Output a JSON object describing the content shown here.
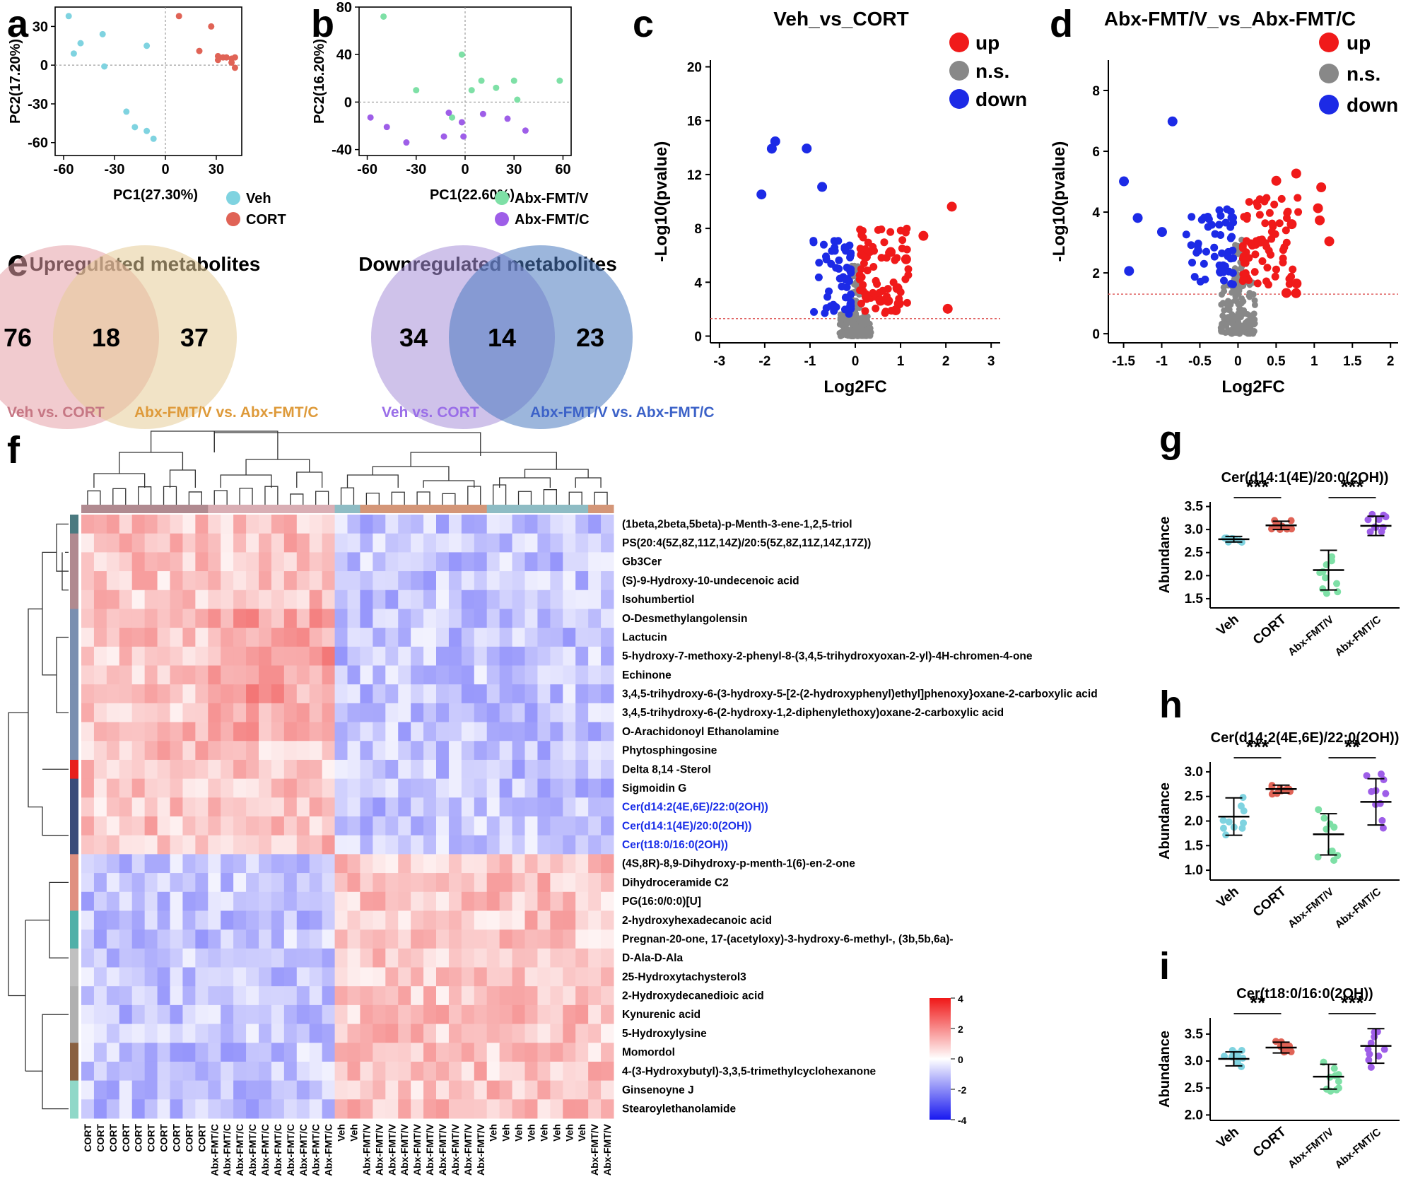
{
  "panel_labels": {
    "a": "a",
    "b": "b",
    "c": "c",
    "d": "d",
    "e": "e",
    "f": "f",
    "g": "g",
    "h": "h",
    "i": "i"
  },
  "colors": {
    "veh": "#7fd3e0",
    "cort": "#e06356",
    "abx_v": "#7ee0a6",
    "abx_c": "#9e5ee8",
    "up": "#f01a1a",
    "ns": "#888888",
    "down": "#1c2ae6"
  },
  "chart_data": [
    {
      "id": "a",
      "type": "scatter",
      "xlabel": "PC1(27.30%)",
      "ylabel": "PC2(17.20%)",
      "xlim": [
        -65,
        45
      ],
      "ylim": [
        -70,
        45
      ],
      "xticks": [
        "-60",
        "-30",
        "0",
        "30"
      ],
      "yticks": [
        "30",
        "0",
        "-30",
        "-60"
      ],
      "legend": [
        "Veh",
        "CORT"
      ],
      "series": [
        {
          "name": "Veh",
          "points": [
            [
              -57,
              38
            ],
            [
              -50,
              17
            ],
            [
              -54,
              9
            ],
            [
              -37,
              24
            ],
            [
              -36,
              -1
            ],
            [
              -11,
              15
            ],
            [
              -23,
              -36
            ],
            [
              -18,
              -48
            ],
            [
              -11,
              -51
            ],
            [
              -7,
              -57
            ]
          ]
        },
        {
          "name": "CORT",
          "points": [
            [
              8,
              38
            ],
            [
              27,
              30
            ],
            [
              20,
              11
            ],
            [
              31,
              7
            ],
            [
              34,
              6
            ],
            [
              36,
              6
            ],
            [
              39,
              5
            ],
            [
              41,
              6
            ],
            [
              39,
              2
            ],
            [
              41,
              -2
            ],
            [
              31,
              4
            ]
          ]
        }
      ]
    },
    {
      "id": "b",
      "type": "scatter",
      "xlabel": "PC1(22.60%)",
      "ylabel": "PC2(16.20%)",
      "xlim": [
        -65,
        65
      ],
      "ylim": [
        -45,
        80
      ],
      "xticks": [
        "-60",
        "-30",
        "0",
        "30",
        "60"
      ],
      "yticks": [
        "80",
        "40",
        "0",
        "-40"
      ],
      "legend": [
        "Abx-FMT/V",
        "Abx-FMT/C"
      ],
      "series": [
        {
          "name": "Abx-FMT/V",
          "points": [
            [
              -50,
              72
            ],
            [
              -30,
              10
            ],
            [
              -2,
              40
            ],
            [
              4,
              10
            ],
            [
              10,
              18
            ],
            [
              19,
              12
            ],
            [
              30,
              18
            ],
            [
              32,
              2
            ],
            [
              58,
              18
            ],
            [
              -8,
              -13
            ]
          ]
        },
        {
          "name": "Abx-FMT/C",
          "points": [
            [
              -58,
              -13
            ],
            [
              -48,
              -21
            ],
            [
              -36,
              -34
            ],
            [
              -10,
              -9
            ],
            [
              -2,
              -17
            ],
            [
              -1,
              -29
            ],
            [
              11,
              -10
            ],
            [
              26,
              -14
            ],
            [
              37,
              -24
            ],
            [
              -13,
              -29
            ]
          ]
        }
      ]
    },
    {
      "id": "c",
      "type": "scatter",
      "title": "Veh_vs_CORT",
      "xlabel": "Log2FC",
      "ylabel": "-Log10(pvalue)",
      "xlim": [
        -3.2,
        3.2
      ],
      "ylim": [
        -0.5,
        20.5
      ],
      "xticks": [
        "-3",
        "-2",
        "-1",
        "0",
        "1",
        "2",
        "3"
      ],
      "yticks": [
        "20",
        "16",
        "12",
        "8",
        "4",
        "0"
      ],
      "legend": [
        "up",
        "n.s.",
        "down"
      ],
      "threshold": 1.3
    },
    {
      "id": "d",
      "type": "scatter",
      "title": "Abx-FMT/V_vs_Abx-FMT/C",
      "xlabel": "Log2FC",
      "ylabel": "-Log10(pvalue)",
      "xlim": [
        -1.7,
        2.1
      ],
      "ylim": [
        -0.3,
        9
      ],
      "xticks": [
        "-1.5",
        "-1",
        "-0.5",
        "0",
        "0.5",
        "1",
        "1.5",
        "2"
      ],
      "yticks": [
        "8",
        "6",
        "4",
        "2",
        "0"
      ],
      "legend": [
        "up",
        "n.s.",
        "down"
      ],
      "threshold": 1.3
    },
    {
      "id": "g",
      "type": "scatter",
      "title": "Cer(d14:1(4E)/20:0(2OH))",
      "ylabel": "Abundance",
      "ylim": [
        1.3,
        3.6
      ],
      "yticks": [
        "3.5",
        "3.0",
        "2.5",
        "2.0",
        "1.5"
      ],
      "categories": [
        "Veh",
        "CORT",
        "Abx-FMT/V",
        "Abx-FMT/C"
      ],
      "means": [
        2.79,
        3.09,
        2.12,
        3.08
      ],
      "sd": [
        0.06,
        0.09,
        0.43,
        0.21
      ],
      "sig": [
        "***",
        "***"
      ]
    },
    {
      "id": "h",
      "type": "scatter",
      "title": "Cer(d14:2(4E,6E)/22:0(2OH))",
      "ylabel": "Abundance",
      "ylim": [
        0.8,
        3.2
      ],
      "yticks": [
        "3.0",
        "2.5",
        "2.0",
        "1.5",
        "1.0"
      ],
      "categories": [
        "Veh",
        "CORT",
        "Abx-FMT/V",
        "Abx-FMT/C"
      ],
      "means": [
        2.09,
        2.65,
        1.73,
        2.39
      ],
      "sd": [
        0.38,
        0.08,
        0.42,
        0.47
      ],
      "sig": [
        "***",
        "**"
      ]
    },
    {
      "id": "i",
      "type": "scatter",
      "title": "Cer(t18:0/16:0(2OH))",
      "ylabel": "Abundance",
      "ylim": [
        1.9,
        3.8
      ],
      "yticks": [
        "3.5",
        "3.0",
        "2.5",
        "2.0"
      ],
      "categories": [
        "Veh",
        "CORT",
        "Abx-FMT/V",
        "Abx-FMT/C"
      ],
      "means": [
        3.04,
        3.25,
        2.71,
        3.28
      ],
      "sd": [
        0.13,
        0.1,
        0.23,
        0.32
      ],
      "sig": [
        "**",
        "***"
      ]
    }
  ],
  "venn": {
    "up": {
      "title": "Upregulated metabolites",
      "left": "76",
      "mid": "18",
      "right": "37",
      "left_label": "Veh vs. CORT",
      "right_label": "Abx-FMT/V vs. Abx-FMT/C"
    },
    "down": {
      "title": "Downregulated metabolites",
      "left": "34",
      "mid": "14",
      "right": "23",
      "left_label": "Veh vs. CORT",
      "right_label": "Abx-FMT/V vs. Abx-FMT/C"
    }
  },
  "heatmap": {
    "scale": {
      "max": "4",
      "t2": "2",
      "t0": "0",
      "tm2": "-2",
      "min": "-4"
    },
    "metabolites": [
      "(1beta,2beta,5beta)-p-Menth-3-ene-1,2,5-triol",
      "PS(20:4(5Z,8Z,11Z,14Z)/20:5(5Z,8Z,11Z,14Z,17Z))",
      "Gb3Cer",
      "(S)-9-Hydroxy-10-undecenoic acid",
      "Isohumbertiol",
      "O-Desmethylangolensin",
      "Lactucin",
      "5-hydroxy-7-methoxy-2-phenyl-8-(3,4,5-trihydroxyoxan-2-yl)-4H-chromen-4-one",
      "Echinone",
      "3,4,5-trihydroxy-6-(3-hydroxy-5-[2-(2-hydroxyphenyl)ethyl]phenoxy}oxane-2-carboxylic acid",
      "3,4,5-trihydroxy-6-(2-hydroxy-1,2-diphenylethoxy)oxane-2-carboxylic acid",
      "O-Arachidonoyl Ethanolamine",
      "Phytosphingosine",
      "Delta 8,14 -Sterol",
      "Sigmoidin G",
      "Cer(d14:2(4E,6E)/22:0(2OH))",
      "Cer(d14:1(4E)/20:0(2OH))",
      "Cer(t18:0/16:0(2OH))",
      "(4S,8R)-8,9-Dihydroxy-p-menth-1(6)-en-2-one",
      "Dihydroceramide C2",
      "PG(16:0/0:0)[U]",
      "2-hydroxyhexadecanoic acid",
      "Pregnan-20-one, 17-(acetyloxy)-3-hydroxy-6-methyl-, (3b,5b,6a)-",
      "D-Ala-D-Ala",
      "25-Hydroxytachysterol3",
      "2-Hydroxydecanedioic acid",
      "Kynurenic acid",
      "5-Hydroxylysine",
      "Momordol",
      "4-(3-Hydroxybutyl)-3,3,5-trimethylcyclohexanone",
      "Ginsenoyne J",
      "Stearoylethanolamide"
    ],
    "samples": [
      "CORT",
      "CORT",
      "CORT",
      "CORT",
      "CORT",
      "CORT",
      "CORT",
      "CORT",
      "CORT",
      "CORT",
      "Abx-FMT/C",
      "Abx-FMT/C",
      "Abx-FMT/C",
      "Abx-FMT/C",
      "Abx-FMT/C",
      "Abx-FMT/C",
      "Abx-FMT/C",
      "Abx-FMT/C",
      "Abx-FMT/C",
      "Abx-FMT/C",
      "Veh",
      "Veh",
      "Abx-FMT/V",
      "Abx-FMT/V",
      "Abx-FMT/V",
      "Abx-FMT/V",
      "Abx-FMT/V",
      "Abx-FMT/V",
      "Abx-FMT/V",
      "Abx-FMT/V",
      "Abx-FMT/V",
      "Abx-FMT/V",
      "Veh",
      "Veh",
      "Veh",
      "Veh",
      "Veh",
      "Veh",
      "Veh",
      "Veh",
      "Abx-FMT/V",
      "Abx-FMT/V"
    ]
  }
}
